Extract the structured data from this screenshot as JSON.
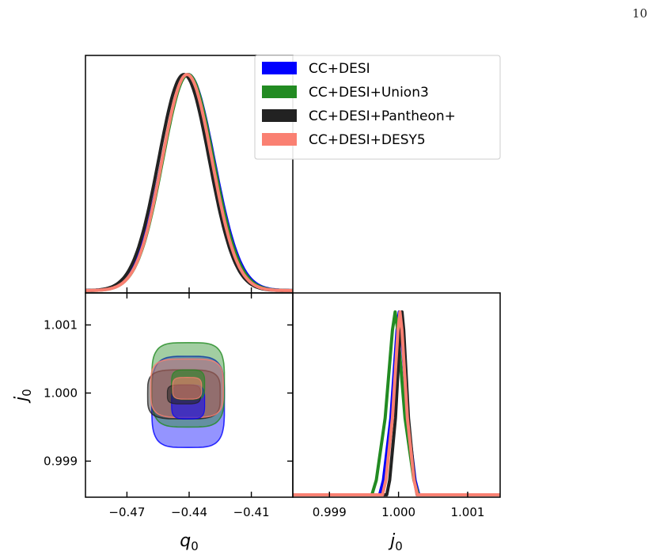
{
  "page_number": "10",
  "colors": {
    "blue": "#0000ff",
    "green": "#228b22",
    "black": "#222222",
    "salmon": "#fa8072"
  },
  "chart_data": [
    {
      "type": "line",
      "panel": "q0 marginal (top-left)",
      "xlim": [
        -0.49,
        -0.39
      ],
      "series": [
        {
          "name": "CC+DESI",
          "color": "#0000ff",
          "mean": -0.4405,
          "sigma": 0.0125
        },
        {
          "name": "CC+DESI+Union3",
          "color": "#228b22",
          "mean": -0.4405,
          "sigma": 0.0122
        },
        {
          "name": "CC+DESI+Pantheon+",
          "color": "#222222",
          "mean": -0.4425,
          "sigma": 0.0122
        },
        {
          "name": "CC+DESI+DESY5",
          "color": "#fa8072",
          "mean": -0.441,
          "sigma": 0.012
        }
      ],
      "legend": {
        "placement": "top-right",
        "entries": [
          "CC+DESI",
          "CC+DESI+Union3",
          "CC+DESI+Pantheon+",
          "CC+DESI+DESY5"
        ]
      }
    },
    {
      "type": "scatter",
      "panel": "q0 vs j0 contours (bottom-left)",
      "xlabel": "q_0",
      "ylabel": "j_0",
      "xlim": [
        -0.49,
        -0.39
      ],
      "ylim": [
        0.99847,
        1.00147
      ],
      "xticks": [
        "−0.47",
        "−0.44",
        "−0.41"
      ],
      "yticks": [
        "0.999",
        "1.000",
        "1.001"
      ],
      "contours": [
        {
          "name": "CC+DESI",
          "color": "#0000ff",
          "center": [
            -0.4405,
            0.99987
          ],
          "outer": [
            0.0175,
            0.00067
          ],
          "inner": [
            0.008,
            0.00025
          ]
        },
        {
          "name": "CC+DESI+Union3",
          "color": "#228b22",
          "center": [
            -0.4405,
            1.00012
          ],
          "outer": [
            0.0175,
            0.00062
          ],
          "inner": [
            0.008,
            0.00022
          ]
        },
        {
          "name": "CC+DESI+Pantheon+",
          "color": "#222222",
          "center": [
            -0.4425,
            0.99998
          ],
          "outer": [
            0.0175,
            0.00036
          ],
          "inner": [
            0.008,
            0.00014
          ]
        },
        {
          "name": "CC+DESI+DESY5",
          "color": "#fa8072",
          "center": [
            -0.441,
            1.00007
          ],
          "outer": [
            0.0175,
            0.00043
          ],
          "inner": [
            0.007,
            0.00016
          ]
        }
      ]
    },
    {
      "type": "line",
      "panel": "j0 marginal (bottom-right)",
      "xlabel": "j_0",
      "xlim": [
        0.99847,
        1.00147
      ],
      "xticks": [
        "0.999",
        "1.000",
        "1.001"
      ],
      "series": [
        {
          "name": "CC+DESI",
          "color": "#0000ff",
          "peak": 1.00001,
          "halfwidth": 0.00027
        },
        {
          "name": "CC+DESI+Union3",
          "color": "#228b22",
          "peak": 0.99995,
          "halfwidth": 0.00032
        },
        {
          "name": "CC+DESI+Pantheon+",
          "color": "#222222",
          "peak": 1.00005,
          "halfwidth": 0.00021
        },
        {
          "name": "CC+DESI+DESY5",
          "color": "#fa8072",
          "peak": 1.00002,
          "halfwidth": 0.00024
        }
      ]
    }
  ]
}
